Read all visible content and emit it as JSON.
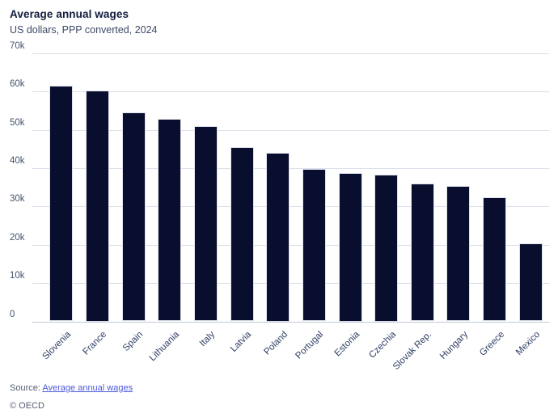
{
  "header": {
    "title": "Average annual wages",
    "subtitle": "US dollars, PPP converted, 2024"
  },
  "chart_data": {
    "type": "bar",
    "title": "Average annual wages",
    "subtitle": "US dollars, PPP converted, 2024",
    "categories": [
      "Slovenia",
      "France",
      "Spain",
      "Lithuania",
      "Italy",
      "Latvia",
      "Poland",
      "Portugal",
      "Estonia",
      "Czechia",
      "Slovak Rep.",
      "Hungary",
      "Greece",
      "Mexico"
    ],
    "values": [
      61500,
      60300,
      54500,
      52800,
      50900,
      45500,
      44100,
      39800,
      38800,
      38400,
      36000,
      35300,
      32400,
      20300
    ],
    "xlabel": "",
    "ylabel": "",
    "ylim": [
      0,
      70000
    ],
    "ytick_step": 10000,
    "ytick_labels": [
      "0",
      "10k",
      "20k",
      "30k",
      "40k",
      "50k",
      "60k",
      "70k"
    ],
    "grid": true,
    "legend": "none",
    "bar_color": "#0a0e2e",
    "gridline_color": "#d9dee9",
    "axis_color": "#c3cad8"
  },
  "footer": {
    "source_label": "Source:",
    "source_link_text": "Average annual wages",
    "copyright": "© OECD"
  }
}
